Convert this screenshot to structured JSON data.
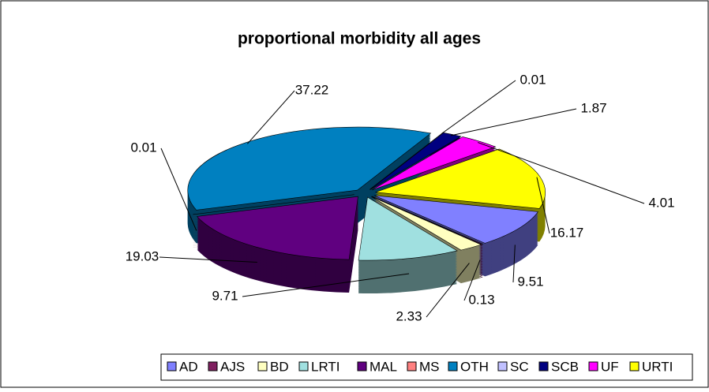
{
  "chart_data": {
    "type": "pie",
    "title": "proportional morbidity all ages",
    "categories": [
      "AD",
      "AJS",
      "BD",
      "LRTI",
      "MAL",
      "MS",
      "OTH",
      "SC",
      "SCB",
      "UF",
      "URTI"
    ],
    "values": [
      9.51,
      0.13,
      2.33,
      9.71,
      19.03,
      0.01,
      37.22,
      0.01,
      1.87,
      4.01,
      16.17
    ],
    "colors": [
      "#8080ff",
      "#802060",
      "#ffffc0",
      "#a0e0e0",
      "#600080",
      "#ff8080",
      "#0080c0",
      "#c0c0ff",
      "#000080",
      "#ff00ff",
      "#ffff00"
    ],
    "legend": "bottom"
  }
}
